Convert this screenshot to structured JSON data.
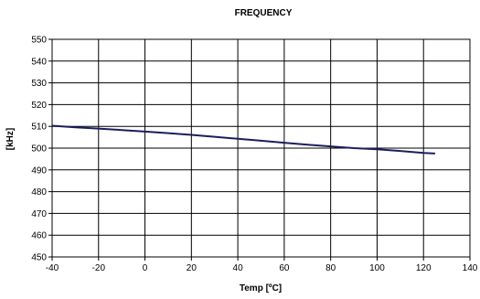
{
  "chart_data": {
    "type": "line",
    "title": "FREQUENCY",
    "xlabel": "Temp [ºC]",
    "ylabel": "[kHz]",
    "xlim": [
      -40,
      140
    ],
    "ylim": [
      450,
      550
    ],
    "xticks": [
      -40,
      -20,
      0,
      20,
      40,
      60,
      80,
      100,
      120,
      140
    ],
    "yticks": [
      450,
      460,
      470,
      480,
      490,
      500,
      510,
      520,
      530,
      540,
      550
    ],
    "grid": true,
    "legend": "none",
    "series": [
      {
        "color": "#1a1f5c",
        "x": [
          -40,
          -30,
          -20,
          -10,
          0,
          10,
          20,
          30,
          40,
          50,
          60,
          70,
          80,
          90,
          100,
          110,
          120,
          125
        ],
        "y": [
          510.3,
          509.6,
          509.0,
          508.3,
          507.6,
          506.9,
          506.1,
          505.2,
          504.3,
          503.4,
          502.5,
          501.6,
          500.8,
          500.0,
          499.5,
          498.7,
          497.8,
          497.5
        ]
      }
    ]
  }
}
